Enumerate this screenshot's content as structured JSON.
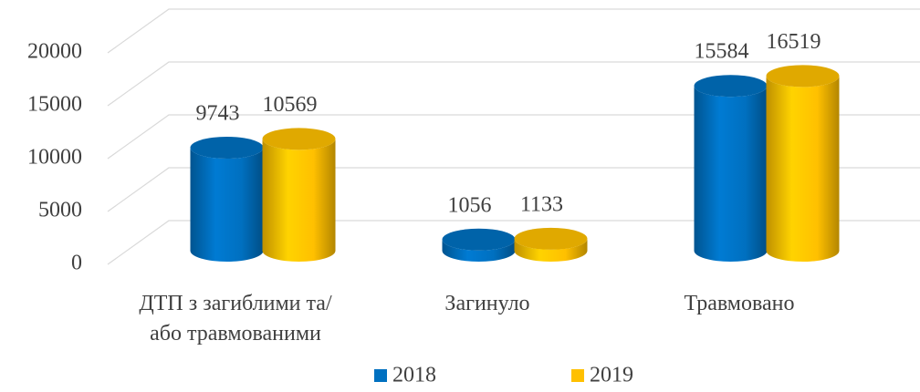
{
  "chart_data": {
    "type": "bar",
    "categories": [
      "ДТП з загиблими та/або травмованими",
      "Загинуло",
      "Травмовано"
    ],
    "series": [
      {
        "name": "2018",
        "color": "#0070c0",
        "values": [
          9743,
          1056,
          15584
        ]
      },
      {
        "name": "2019",
        "color": "#ffc000",
        "values": [
          10569,
          1133,
          16519
        ]
      }
    ],
    "ylim": [
      0,
      20000
    ],
    "yticks": [
      0,
      5000,
      10000,
      15000,
      20000
    ],
    "grid": true,
    "legend": "bottom"
  }
}
